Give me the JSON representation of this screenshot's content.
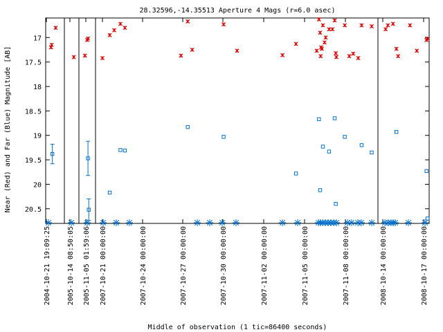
{
  "chart_data": {
    "type": "scatter",
    "title": "28.32596,-14.35513   Aperture 4 Mags (r=6.0 asec)",
    "xlabel": "Middle of observation (1 tic=86400 seconds)",
    "ylabel": "Near (Red) and Far (Blue) Magnitude [AB]",
    "y_axis": {
      "inverted": true,
      "ylim": [
        16.6,
        20.8
      ],
      "ticks": [
        "17",
        "17.5",
        "18",
        "18.5",
        "19",
        "19.5",
        "20",
        "20.5"
      ]
    },
    "x_tick_labels": [
      "2004-10-21 19:09:25",
      "2005-10-14 08:50:05",
      "2005-11-05 01:59:06",
      "2007-10-21 00:00:00",
      "2007-10-24 00:00:00",
      "2007-10-27 00:00:00",
      "2007-10-30 00:00:00",
      "2007-11-02 00:00:00",
      "2007-11-05 00:00:00",
      "2007-11-08 00:00:00",
      "2008-10-14 00:00:00",
      "2008-10-17 00:00:00"
    ],
    "segments": [
      "2004-10-21",
      "2005-10-14",
      "2005-11-05",
      "2007-10-21 to 2007-11-10",
      "2008-10-14 to 2008-10-17"
    ],
    "colors": {
      "near": "#dd0000",
      "far": "#0070d0",
      "frame": "#000000"
    },
    "series": [
      {
        "name": "Near",
        "points": [
          {
            "x": "2004-10-21 19:00",
            "y": 17.2
          },
          {
            "x": "2004-10-21 20:00",
            "y": 17.15
          },
          {
            "x": "2004-10-22 02:00",
            "y": 16.8
          },
          {
            "x": "2005-10-14 09:00",
            "y": 17.4
          },
          {
            "x": "2005-11-05 00:00",
            "y": 17.37
          },
          {
            "x": "2005-11-05 03:00",
            "y": 17.05
          },
          {
            "x": "2005-11-05 04:00",
            "y": 17.02
          },
          {
            "x": "2007-10-21 00:00",
            "y": 17.42
          },
          {
            "x": "2007-10-21 13:00",
            "y": 16.95
          },
          {
            "x": "2007-10-21 21:00",
            "y": 16.85
          },
          {
            "x": "2007-10-22 08:00",
            "y": 16.72
          },
          {
            "x": "2007-10-22 16:00",
            "y": 16.8
          },
          {
            "x": "2007-10-26 20:00",
            "y": 17.37
          },
          {
            "x": "2007-10-27 08:00",
            "y": 16.67
          },
          {
            "x": "2007-10-27 16:00",
            "y": 17.25
          },
          {
            "x": "2007-10-30 00:00",
            "y": 16.73
          },
          {
            "x": "2007-10-31 00:00",
            "y": 17.27
          },
          {
            "x": "2007-11-03 09:00",
            "y": 17.36
          },
          {
            "x": "2007-11-04 09:00",
            "y": 17.13
          },
          {
            "x": "2007-11-05 22:00",
            "y": 17.27
          },
          {
            "x": "2007-11-06 02:00",
            "y": 16.63
          },
          {
            "x": "2007-11-06 04:00",
            "y": 16.9
          },
          {
            "x": "2007-11-06 05:00",
            "y": 17.38
          },
          {
            "x": "2007-11-06 06:00",
            "y": 17.2
          },
          {
            "x": "2007-11-06 07:00",
            "y": 17.23
          },
          {
            "x": "2007-11-06 09:00",
            "y": 16.75
          },
          {
            "x": "2007-11-06 12:00",
            "y": 17.1
          },
          {
            "x": "2007-11-06 14:00",
            "y": 17.0
          },
          {
            "x": "2007-11-06 20:00",
            "y": 16.83
          },
          {
            "x": "2007-11-07 02:00",
            "y": 16.83
          },
          {
            "x": "2007-11-07 06:00",
            "y": 16.65
          },
          {
            "x": "2007-11-07 08:00",
            "y": 17.32
          },
          {
            "x": "2007-11-07 09:00",
            "y": 17.4
          },
          {
            "x": "2007-11-08 00:00",
            "y": 16.75
          },
          {
            "x": "2007-11-08 08:00",
            "y": 17.38
          },
          {
            "x": "2007-11-08 15:00",
            "y": 17.33
          },
          {
            "x": "2007-11-09 00:00",
            "y": 17.42
          },
          {
            "x": "2007-11-09 06:00",
            "y": 16.75
          },
          {
            "x": "2007-11-10 00:00",
            "y": 16.77
          },
          {
            "x": "2008-10-14 05:00",
            "y": 16.83
          },
          {
            "x": "2008-10-14 09:00",
            "y": 16.75
          },
          {
            "x": "2008-10-14 18:00",
            "y": 16.72
          },
          {
            "x": "2008-10-15 00:00",
            "y": 17.23
          },
          {
            "x": "2008-10-15 03:00",
            "y": 17.38
          },
          {
            "x": "2008-10-16 00:00",
            "y": 16.75
          },
          {
            "x": "2008-10-16 12:00",
            "y": 17.27
          },
          {
            "x": "2008-10-17 12:00",
            "y": 17.05
          },
          {
            "x": "2008-10-17 16:00",
            "y": 17.02
          }
        ]
      },
      {
        "name": "Far",
        "points": [
          {
            "x": "2004-10-21 21:00",
            "y": 19.38,
            "err": 0.2
          },
          {
            "x": "2005-11-05 04:00",
            "y": 19.47,
            "err": 0.35
          },
          {
            "x": "2005-11-05 05:00",
            "y": 20.52,
            "err": 0.22
          },
          {
            "x": "2007-10-21 13:00",
            "y": 20.17
          },
          {
            "x": "2007-10-22 08:00",
            "y": 19.3
          },
          {
            "x": "2007-10-22 16:00",
            "y": 19.31
          },
          {
            "x": "2007-10-27 08:00",
            "y": 18.83
          },
          {
            "x": "2007-10-30 00:00",
            "y": 19.03
          },
          {
            "x": "2007-11-04 09:00",
            "y": 19.78
          },
          {
            "x": "2007-11-06 02:00",
            "y": 18.67
          },
          {
            "x": "2007-11-06 04:00",
            "y": 20.12
          },
          {
            "x": "2007-11-06 09:00",
            "y": 19.23
          },
          {
            "x": "2007-11-06 20:00",
            "y": 19.33
          },
          {
            "x": "2007-11-07 06:00",
            "y": 18.65
          },
          {
            "x": "2007-11-07 08:00",
            "y": 20.4
          },
          {
            "x": "2007-11-08 00:00",
            "y": 19.03
          },
          {
            "x": "2007-11-09 06:00",
            "y": 19.2
          },
          {
            "x": "2007-11-10 00:00",
            "y": 19.35
          },
          {
            "x": "2008-10-15 00:00",
            "y": 18.93
          },
          {
            "x": "2008-10-17 12:00",
            "y": 19.73
          },
          {
            "x": "2008-10-17 16:00",
            "y": 20.7
          }
        ]
      }
    ],
    "limits_marker": "asterisk row at bottom edge"
  }
}
